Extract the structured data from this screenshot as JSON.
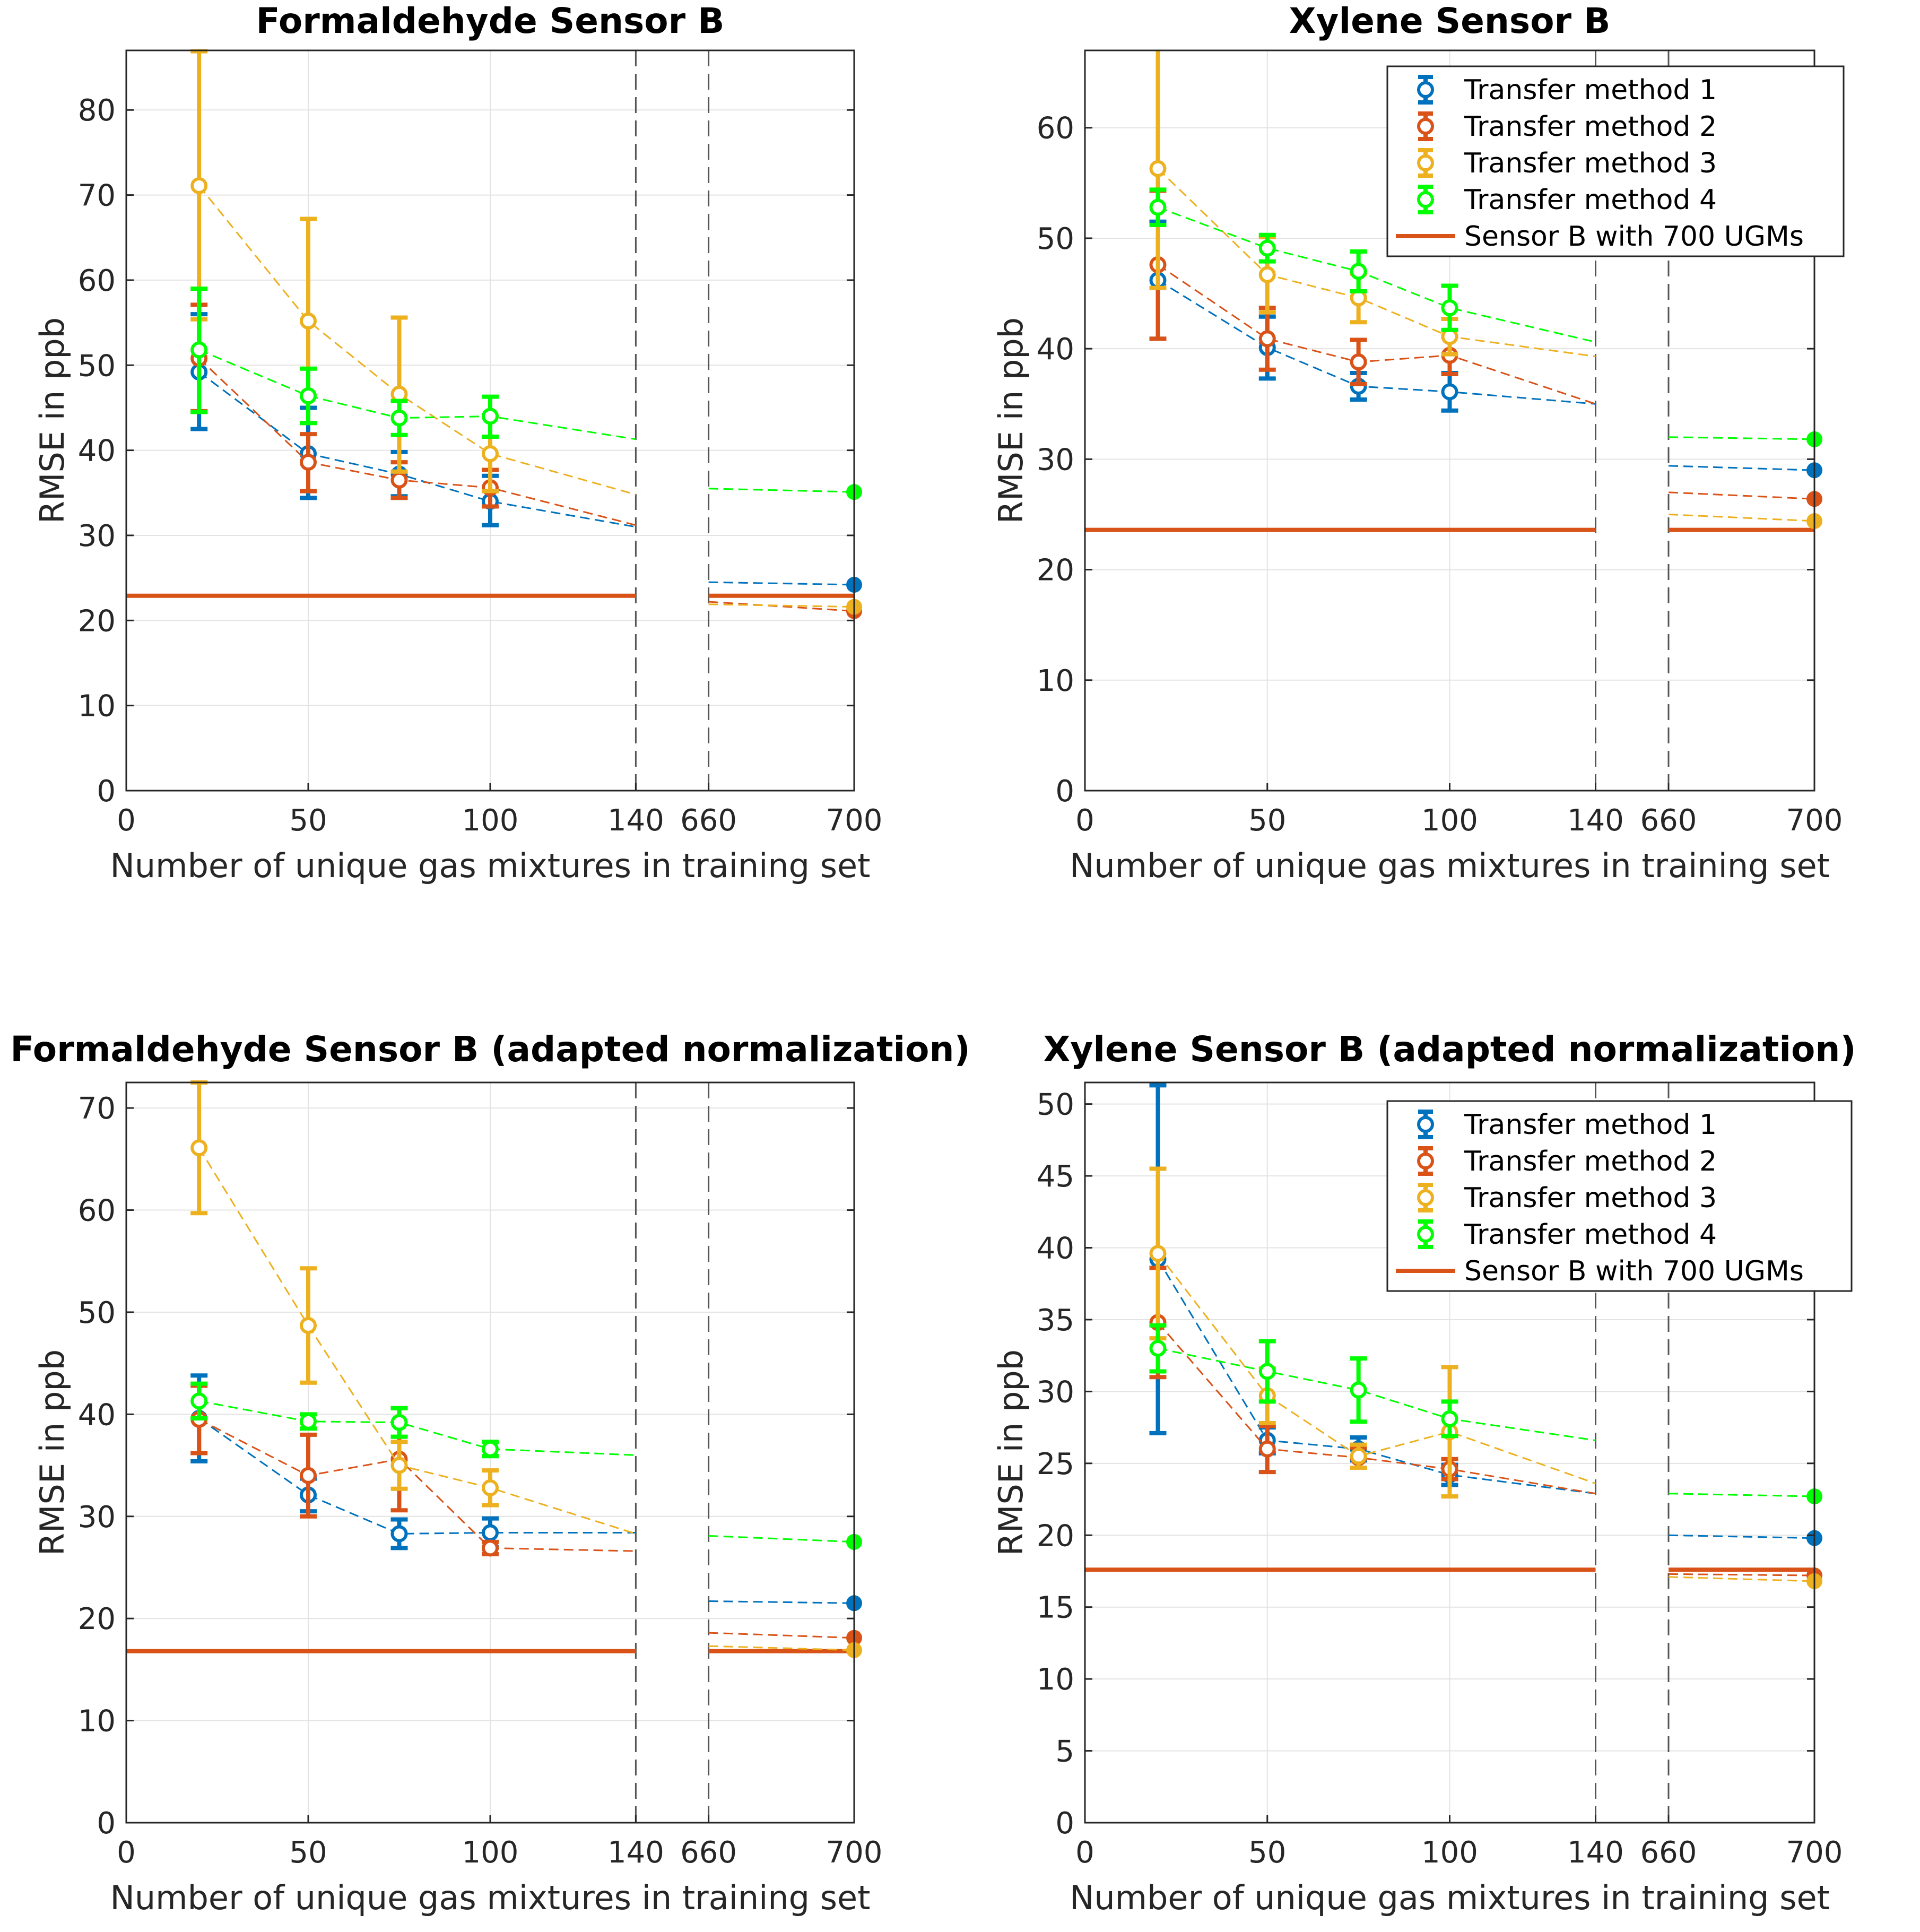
{
  "colors": {
    "tm1": "#0072BD",
    "tm2": "#D95319",
    "tm3": "#EDB120",
    "tm4": "#00FF00",
    "ref": "#D95319",
    "grid": "#e3e3e3",
    "axis": "#262626",
    "break_line": "#555555"
  },
  "chart_data": [
    {
      "type": "line",
      "title": "Formaldehyde Sensor B",
      "xlabel": "Number of unique gas mixtures in training set",
      "ylabel": "RMSE in ppb",
      "xlim": [
        0,
        700
      ],
      "ylim": [
        0,
        87
      ],
      "x_axis_break": [
        140,
        660
      ],
      "xticks": [
        0,
        50,
        100,
        140,
        660,
        700
      ],
      "yticks": [
        0,
        10,
        20,
        30,
        40,
        50,
        60,
        70,
        80
      ],
      "grid": true,
      "legend": null,
      "x": [
        20,
        50,
        75,
        100
      ],
      "series": [
        {
          "name": "Transfer method 1",
          "color_key": "tm1",
          "values": [
            49.2,
            39.6,
            37.2,
            34.0
          ],
          "err_low": [
            42.5,
            34.4,
            34.6,
            31.2
          ],
          "err_high": [
            56.0,
            45.0,
            39.8,
            37.0
          ],
          "trend_140": 31.0,
          "trend_660": 24.5,
          "value_700": 24.2
        },
        {
          "name": "Transfer method 2",
          "color_key": "tm2",
          "values": [
            50.8,
            38.6,
            36.5,
            35.6
          ],
          "err_low": [
            44.6,
            35.2,
            34.4,
            33.4
          ],
          "err_high": [
            57.1,
            41.9,
            38.6,
            37.7
          ],
          "trend_140": 31.2,
          "trend_660": 22.2,
          "value_700": 21.1
        },
        {
          "name": "Transfer method 3",
          "color_key": "tm3",
          "values": [
            71.1,
            55.2,
            46.6,
            39.6
          ],
          "err_low": [
            55.4,
            43.2,
            37.5,
            35.2
          ],
          "err_high": [
            86.9,
            67.2,
            55.6,
            44.0
          ],
          "trend_140": 34.8,
          "trend_660": 21.9,
          "value_700": 21.6
        },
        {
          "name": "Transfer method 4",
          "color_key": "tm4",
          "values": [
            51.8,
            46.4,
            43.8,
            44.0
          ],
          "err_low": [
            44.5,
            43.2,
            41.8,
            41.6
          ],
          "err_high": [
            59.0,
            49.6,
            45.8,
            46.3
          ],
          "trend_140": 41.3,
          "trend_660": 35.5,
          "value_700": 35.1
        }
      ],
      "reference": {
        "name": "Sensor B with 700 UGMs",
        "value": 22.9
      }
    },
    {
      "type": "line",
      "title": "Xylene Sensor B",
      "xlabel": "Number of unique gas mixtures in training set",
      "ylabel": "RMSE in ppb",
      "xlim": [
        0,
        700
      ],
      "ylim": [
        0,
        67
      ],
      "x_axis_break": [
        140,
        660
      ],
      "xticks": [
        0,
        50,
        100,
        140,
        660,
        700
      ],
      "yticks": [
        0,
        10,
        20,
        30,
        40,
        50,
        60
      ],
      "grid": true,
      "legend": "top-right",
      "x": [
        20,
        50,
        75,
        100
      ],
      "series": [
        {
          "name": "Transfer method 1",
          "color_key": "tm1",
          "values": [
            46.2,
            40.1,
            36.6,
            36.1
          ],
          "err_low": [
            40.9,
            37.3,
            35.4,
            34.4
          ],
          "err_high": [
            51.5,
            42.9,
            37.8,
            37.8
          ],
          "trend_140": 35.0,
          "trend_660": 29.4,
          "value_700": 29.0
        },
        {
          "name": "Transfer method 2",
          "color_key": "tm2",
          "values": [
            47.6,
            40.9,
            38.8,
            39.4
          ],
          "err_low": [
            40.9,
            38.1,
            36.8,
            37.7
          ],
          "err_high": [
            54.3,
            43.7,
            40.8,
            41.1
          ],
          "trend_140": 35.0,
          "trend_660": 27.0,
          "value_700": 26.4
        },
        {
          "name": "Transfer method 3",
          "color_key": "tm3",
          "values": [
            56.3,
            46.7,
            44.6,
            41.1
          ],
          "err_low": [
            45.5,
            43.3,
            42.4,
            39.5
          ],
          "err_high": [
            67.1,
            50.1,
            46.8,
            42.7
          ],
          "trend_140": 39.3,
          "trend_660": 25.0,
          "value_700": 24.4
        },
        {
          "name": "Transfer method 4",
          "color_key": "tm4",
          "values": [
            52.8,
            49.1,
            47.0,
            43.7
          ],
          "err_low": [
            51.2,
            47.9,
            45.2,
            41.7
          ],
          "err_high": [
            54.4,
            50.3,
            48.8,
            45.7
          ],
          "trend_140": 40.6,
          "trend_660": 32.0,
          "value_700": 31.8
        }
      ],
      "reference": {
        "name": "Sensor B with 700 UGMs",
        "value": 23.6
      }
    },
    {
      "type": "line",
      "title": "Formaldehyde Sensor B (adapted normalization)",
      "xlabel": "Number of unique gas mixtures in training set",
      "ylabel": "RMSE in ppb",
      "xlim": [
        0,
        700
      ],
      "ylim": [
        0,
        72.5
      ],
      "x_axis_break": [
        140,
        660
      ],
      "xticks": [
        0,
        50,
        100,
        140,
        660,
        700
      ],
      "yticks": [
        0,
        10,
        20,
        30,
        40,
        50,
        60,
        70
      ],
      "grid": true,
      "legend": null,
      "x": [
        20,
        50,
        75,
        100
      ],
      "series": [
        {
          "name": "Transfer method 1",
          "color_key": "tm1",
          "values": [
            39.6,
            32.1,
            28.3,
            28.4
          ],
          "err_low": [
            35.4,
            30.5,
            26.9,
            27.0
          ],
          "err_high": [
            43.8,
            33.7,
            29.7,
            29.8
          ],
          "trend_140": 28.4,
          "trend_660": 21.7,
          "value_700": 21.5
        },
        {
          "name": "Transfer method 2",
          "color_key": "tm2",
          "values": [
            39.5,
            34.0,
            35.6,
            26.9
          ],
          "err_low": [
            36.2,
            30.0,
            30.6,
            26.3
          ],
          "err_high": [
            42.8,
            38.0,
            40.6,
            27.5
          ],
          "trend_140": 26.6,
          "trend_660": 18.6,
          "value_700": 18.1
        },
        {
          "name": "Transfer method 3",
          "color_key": "tm3",
          "values": [
            66.1,
            48.7,
            35.0,
            32.8
          ],
          "err_low": [
            59.7,
            43.1,
            32.7,
            31.1
          ],
          "err_high": [
            72.5,
            54.3,
            37.3,
            34.5
          ],
          "trend_140": 28.3,
          "trend_660": 17.3,
          "value_700": 16.9
        },
        {
          "name": "Transfer method 4",
          "color_key": "tm4",
          "values": [
            41.3,
            39.3,
            39.2,
            36.6
          ],
          "err_low": [
            39.6,
            38.6,
            37.8,
            35.9
          ],
          "err_high": [
            43.0,
            40.0,
            40.6,
            37.3
          ],
          "trend_140": 36.0,
          "trend_660": 28.1,
          "value_700": 27.5
        }
      ],
      "reference": {
        "name": "Sensor B with 700 UGMs",
        "value": 16.8
      }
    },
    {
      "type": "line",
      "title": "Xylene Sensor B (adapted normalization)",
      "xlabel": "Number of unique gas mixtures in training set",
      "ylabel": "RMSE in ppb",
      "xlim": [
        0,
        700
      ],
      "ylim": [
        0,
        51.5
      ],
      "x_axis_break": [
        140,
        660
      ],
      "xticks": [
        0,
        50,
        100,
        140,
        660,
        700
      ],
      "yticks": [
        0,
        5,
        10,
        15,
        20,
        25,
        30,
        35,
        40,
        45,
        50
      ],
      "grid": true,
      "legend": "top-right",
      "x": [
        20,
        50,
        75,
        100
      ],
      "series": [
        {
          "name": "Transfer method 1",
          "color_key": "tm1",
          "values": [
            39.2,
            26.6,
            26.0,
            24.2
          ],
          "err_low": [
            27.1,
            25.7,
            25.2,
            23.5
          ],
          "err_high": [
            51.3,
            27.5,
            26.8,
            24.9
          ],
          "trend_140": 22.9,
          "trend_660": 20.0,
          "value_700": 19.8
        },
        {
          "name": "Transfer method 2",
          "color_key": "tm2",
          "values": [
            34.8,
            26.0,
            25.4,
            24.6
          ],
          "err_low": [
            31.0,
            24.4,
            24.7,
            23.9
          ],
          "err_high": [
            38.6,
            27.6,
            26.1,
            25.3
          ],
          "trend_140": 22.9,
          "trend_660": 17.3,
          "value_700": 17.2
        },
        {
          "name": "Transfer method 3",
          "color_key": "tm3",
          "values": [
            39.6,
            29.7,
            25.5,
            27.2
          ],
          "err_low": [
            33.7,
            27.8,
            24.7,
            22.7
          ],
          "err_high": [
            45.5,
            31.6,
            26.3,
            31.7
          ],
          "trend_140": 23.6,
          "trend_660": 17.1,
          "value_700": 16.8
        },
        {
          "name": "Transfer method 4",
          "color_key": "tm4",
          "values": [
            33.0,
            31.4,
            30.1,
            28.1
          ],
          "err_low": [
            31.4,
            29.3,
            27.9,
            26.9
          ],
          "err_high": [
            34.6,
            33.5,
            32.3,
            29.3
          ],
          "trend_140": 26.6,
          "trend_660": 22.9,
          "value_700": 22.7
        }
      ],
      "reference": {
        "name": "Sensor B with 700 UGMs",
        "value": 17.6
      }
    }
  ]
}
